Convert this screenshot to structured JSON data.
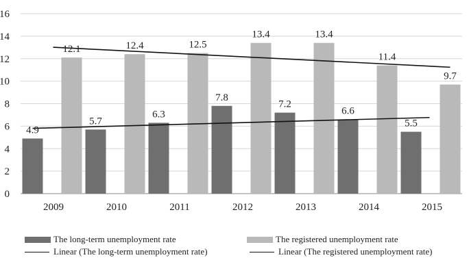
{
  "chart_data": {
    "type": "bar",
    "categories": [
      "2009",
      "2010",
      "2011",
      "2012",
      "2013",
      "2014",
      "2015"
    ],
    "series": [
      {
        "name": "The long-term unemployment rate",
        "values": [
          4.9,
          5.7,
          6.3,
          7.8,
          7.2,
          6.6,
          5.5
        ],
        "color": "#6f6f6f",
        "data_labels": [
          "4.9",
          "5.7",
          "6.3",
          "7.8",
          "7.2",
          "6.6",
          "5.5"
        ]
      },
      {
        "name": "The registered unemployment rate",
        "values": [
          12.1,
          12.4,
          12.5,
          13.4,
          13.4,
          11.4,
          9.7
        ],
        "color": "#b9b9b9",
        "data_labels": [
          "12.1",
          "12.4",
          "12.5",
          "13.4",
          "13.4",
          "11.4",
          "9.7"
        ]
      }
    ],
    "trendlines": [
      {
        "name": "Linear (The long-term unemployment rate)",
        "series_index": 0,
        "type": "linear",
        "color": "#111111"
      },
      {
        "name": "Linear (The registered unemployment rate)",
        "series_index": 1,
        "type": "linear",
        "color": "#111111"
      }
    ],
    "ylim": [
      0,
      16
    ],
    "yticks": [
      "0",
      "2",
      "4",
      "6",
      "8",
      "10",
      "12",
      "14",
      "16"
    ],
    "grid": true,
    "legend_position": "bottom"
  }
}
